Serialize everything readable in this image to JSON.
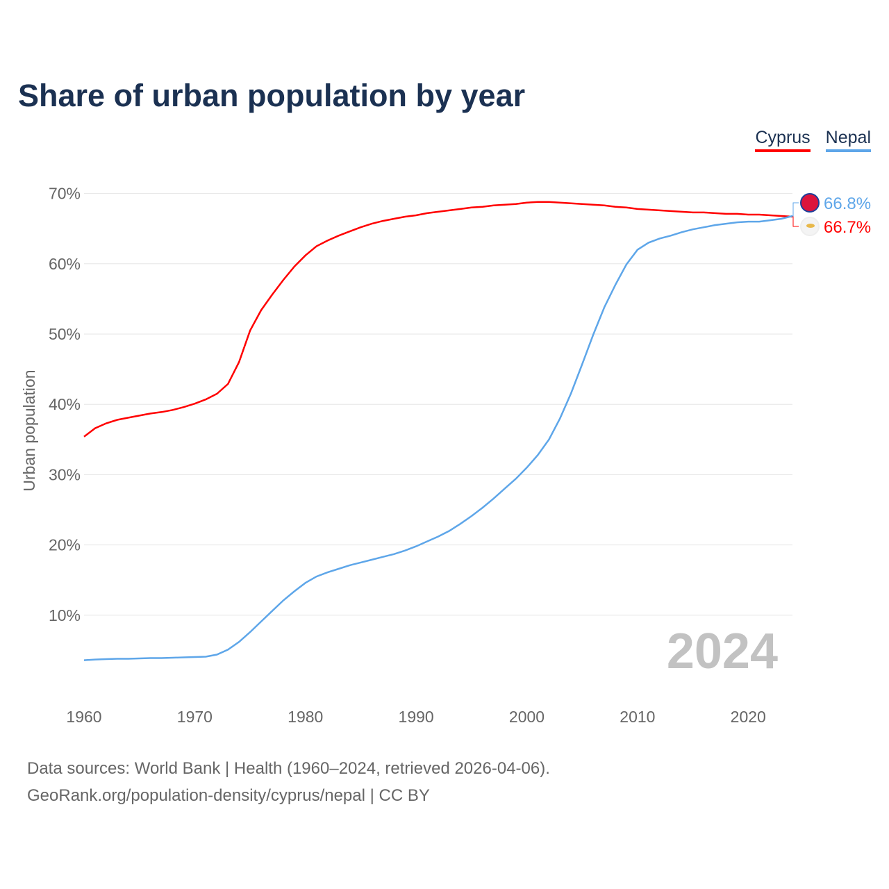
{
  "chart_data": {
    "type": "line",
    "title": "Share of urban population by year",
    "xlabel": "",
    "ylabel": "Urban population",
    "xlim": [
      1960,
      2024
    ],
    "ylim": [
      0,
      70
    ],
    "x_ticks": [
      "1960",
      "1970",
      "1980",
      "1990",
      "2000",
      "2010",
      "2020"
    ],
    "y_ticks": [
      "10%",
      "20%",
      "30%",
      "40%",
      "50%",
      "60%",
      "70%"
    ],
    "grid": true,
    "legend_placement": "top-right",
    "year_watermark": "2024",
    "x": [
      1960,
      1961,
      1962,
      1963,
      1964,
      1965,
      1966,
      1967,
      1968,
      1969,
      1970,
      1971,
      1972,
      1973,
      1974,
      1975,
      1976,
      1977,
      1978,
      1979,
      1980,
      1981,
      1982,
      1983,
      1984,
      1985,
      1986,
      1987,
      1988,
      1989,
      1990,
      1991,
      1992,
      1993,
      1994,
      1995,
      1996,
      1997,
      1998,
      1999,
      2000,
      2001,
      2002,
      2003,
      2004,
      2005,
      2006,
      2007,
      2008,
      2009,
      2010,
      2011,
      2012,
      2013,
      2014,
      2015,
      2016,
      2017,
      2018,
      2019,
      2020,
      2021,
      2022,
      2023,
      2024
    ],
    "series": [
      {
        "name": "Cyprus",
        "color": "#ff0000",
        "end_label": "66.7%",
        "values": [
          35.4,
          36.6,
          37.3,
          37.8,
          38.1,
          38.4,
          38.7,
          38.9,
          39.2,
          39.6,
          40.1,
          40.7,
          41.5,
          42.9,
          46.0,
          50.5,
          53.4,
          55.6,
          57.7,
          59.6,
          61.2,
          62.5,
          63.3,
          64.0,
          64.6,
          65.2,
          65.7,
          66.1,
          66.4,
          66.7,
          66.9,
          67.2,
          67.4,
          67.6,
          67.8,
          68.0,
          68.1,
          68.3,
          68.4,
          68.5,
          68.7,
          68.8,
          68.8,
          68.7,
          68.6,
          68.5,
          68.4,
          68.3,
          68.1,
          68.0,
          67.8,
          67.7,
          67.6,
          67.5,
          67.4,
          67.3,
          67.3,
          67.2,
          67.1,
          67.1,
          67.0,
          67.0,
          66.9,
          66.8,
          66.7
        ]
      },
      {
        "name": "Nepal",
        "color": "#5ea6e9",
        "end_label": "66.8%",
        "values": [
          3.6,
          3.7,
          3.75,
          3.8,
          3.8,
          3.85,
          3.9,
          3.9,
          3.95,
          4.0,
          4.05,
          4.1,
          4.4,
          5.1,
          6.2,
          7.6,
          9.1,
          10.6,
          12.1,
          13.4,
          14.6,
          15.5,
          16.1,
          16.6,
          17.1,
          17.5,
          17.9,
          18.3,
          18.7,
          19.2,
          19.8,
          20.5,
          21.2,
          22.0,
          23.0,
          24.1,
          25.3,
          26.6,
          28.0,
          29.4,
          31.0,
          32.8,
          35.0,
          38.0,
          41.6,
          45.7,
          49.9,
          53.8,
          57.0,
          59.9,
          62.0,
          63.0,
          63.6,
          64.0,
          64.5,
          64.9,
          65.2,
          65.5,
          65.7,
          65.9,
          66.0,
          66.0,
          66.2,
          66.4,
          66.8
        ]
      }
    ]
  },
  "footer": {
    "line1": "Data sources: World Bank | Health (1960–2024, retrieved 2026-04-06).",
    "line2": "GeoRank.org/population-density/cyprus/nepal | CC BY"
  }
}
